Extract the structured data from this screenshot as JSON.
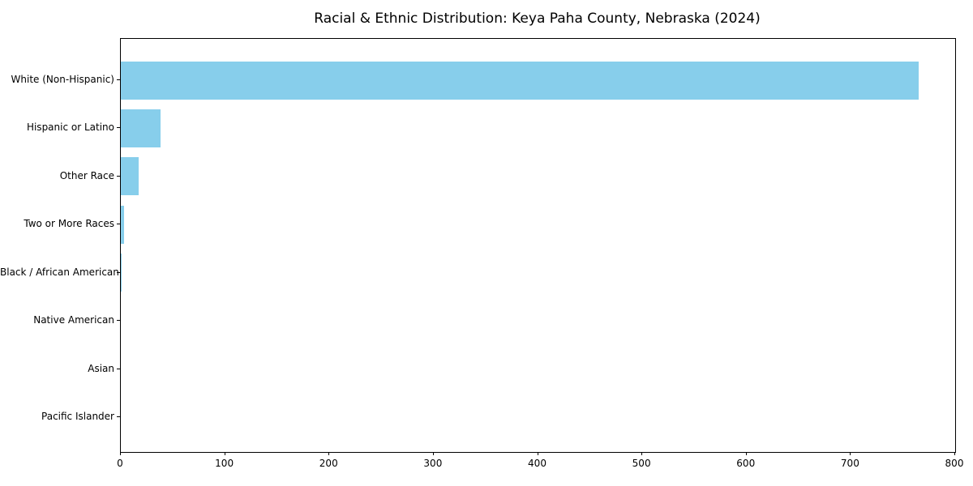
{
  "chart_data": {
    "type": "bar",
    "orientation": "horizontal",
    "title": "Racial & Ethnic Distribution: Keya Paha County, Nebraska (2024)",
    "categories": [
      "White (Non-Hispanic)",
      "Hispanic or Latino",
      "Other Race",
      "Two or More Races",
      "Black / African American",
      "Native American",
      "Asian",
      "Pacific Islander"
    ],
    "values": [
      765,
      38,
      17,
      3,
      1,
      0,
      0,
      0
    ],
    "xlabel": "",
    "ylabel": "",
    "xlim": [
      0,
      800
    ],
    "xticks": [
      0,
      100,
      200,
      300,
      400,
      500,
      600,
      700,
      800
    ],
    "grid": false,
    "legend": "none",
    "bar_color": "#87ceeb",
    "axis_color": "#000000",
    "background_color": "#ffffff"
  }
}
